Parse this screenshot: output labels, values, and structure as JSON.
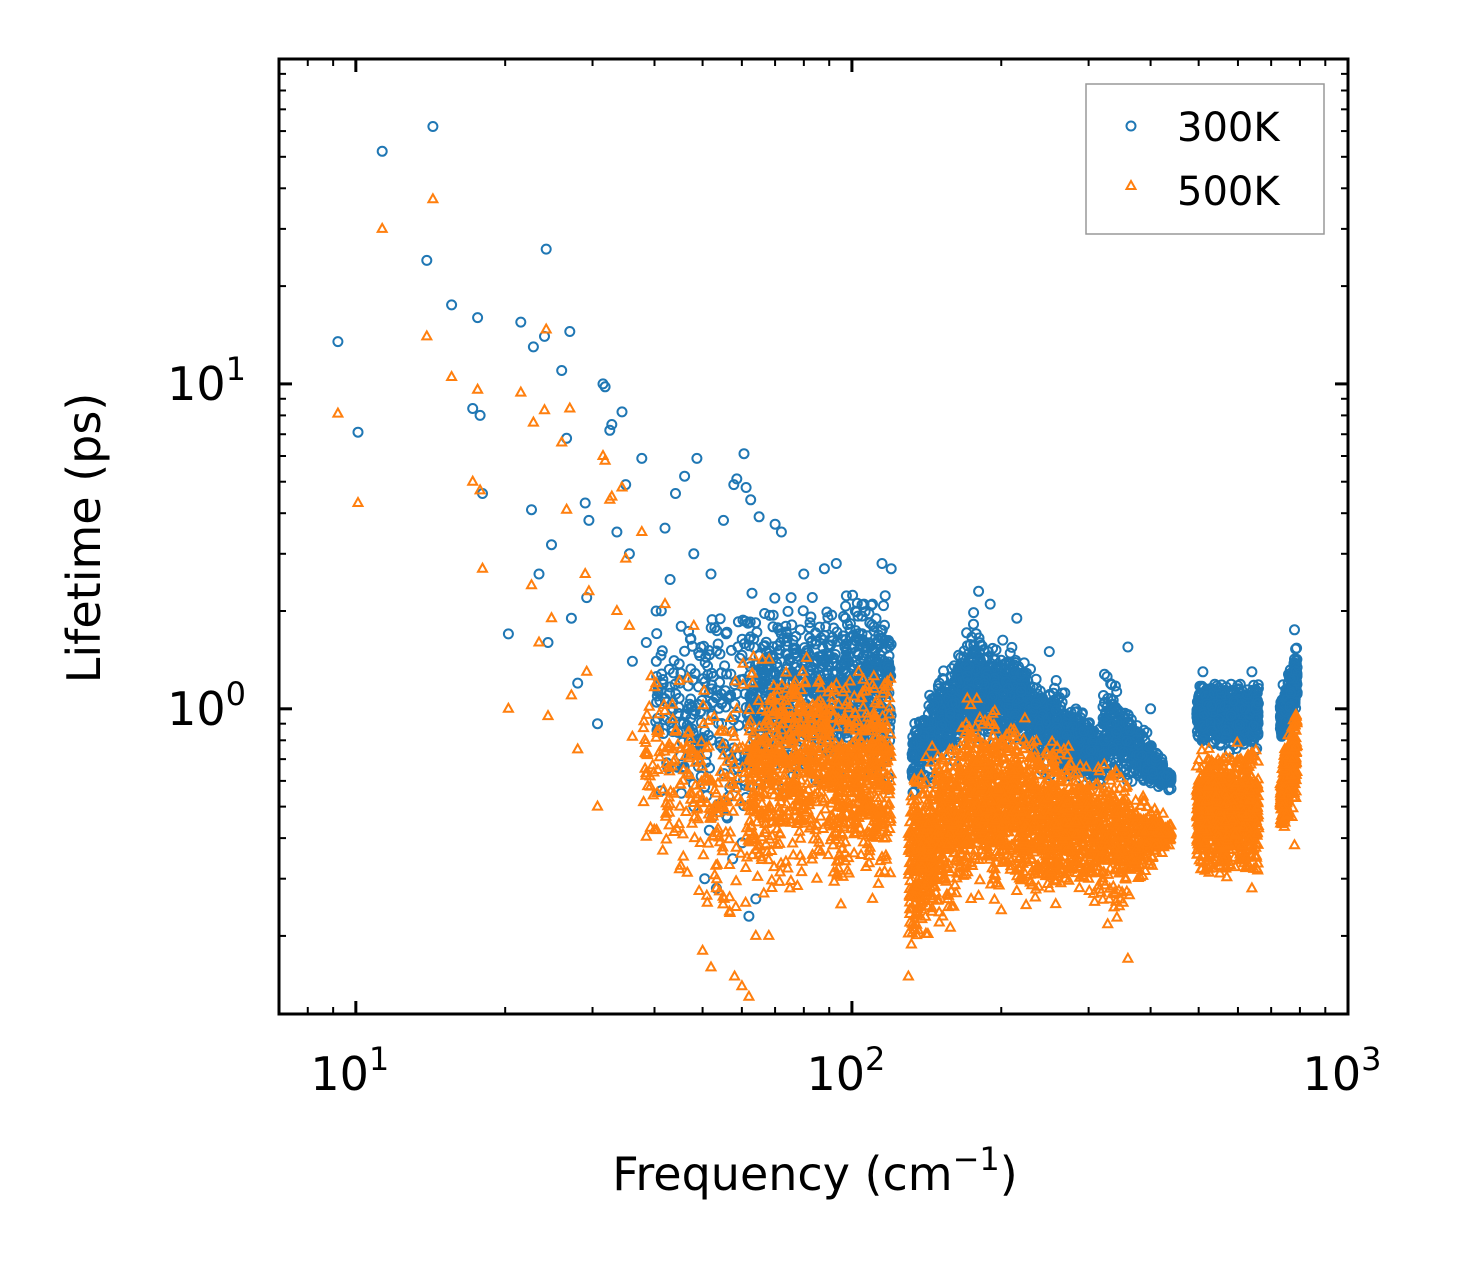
{
  "chart_data": {
    "type": "scatter",
    "title": "",
    "xlabel": "Frequency (cm",
    "xlabel_sup": "−1",
    "xlabel_end": ")",
    "ylabel": "Lifetime (ps)",
    "xscale": "log",
    "yscale": "log",
    "xlim": [
      7,
      1000
    ],
    "ylim": [
      0.115,
      100
    ],
    "legend_location": "top-right",
    "x_ticks": [
      {
        "value": 10,
        "base": "10",
        "exp": "1"
      },
      {
        "value": 100,
        "base": "10",
        "exp": "2"
      },
      {
        "value": 1000,
        "base": "10",
        "exp": "3"
      }
    ],
    "y_ticks": [
      {
        "value": 1,
        "base": "10",
        "exp": "0"
      },
      {
        "value": 10,
        "base": "10",
        "exp": "1"
      }
    ],
    "series": [
      {
        "name": "300K",
        "color": "#1f77b4",
        "marker": "circle",
        "points": [
          [
            9.2,
            13.5
          ],
          [
            10.1,
            7.1
          ],
          [
            11.3,
            52
          ],
          [
            13.9,
            24
          ],
          [
            14.3,
            62
          ],
          [
            15.6,
            17.5
          ],
          [
            17.2,
            8.4
          ],
          [
            17.6,
            16
          ],
          [
            17.8,
            8
          ],
          [
            18.0,
            4.6
          ],
          [
            20.3,
            1.7
          ],
          [
            21.5,
            15.5
          ],
          [
            22.6,
            4.1
          ],
          [
            22.8,
            13
          ],
          [
            23.4,
            2.6
          ],
          [
            24.0,
            14
          ],
          [
            24.2,
            26
          ],
          [
            24.4,
            1.6
          ],
          [
            24.8,
            3.2
          ],
          [
            26.0,
            11
          ],
          [
            26.6,
            6.8
          ],
          [
            27.0,
            14.5
          ],
          [
            27.2,
            1.9
          ],
          [
            28.0,
            1.2
          ],
          [
            29.0,
            4.3
          ],
          [
            29.2,
            2.2
          ],
          [
            29.5,
            3.8
          ],
          [
            30.7,
            0.9
          ],
          [
            31.5,
            10
          ],
          [
            31.8,
            9.8
          ],
          [
            32.5,
            7.2
          ],
          [
            32.8,
            7.5
          ],
          [
            33.6,
            3.5
          ],
          [
            34.4,
            8.2
          ],
          [
            35.0,
            4.9
          ],
          [
            35.6,
            3.0
          ],
          [
            36.1,
            1.4
          ],
          [
            37.7,
            5.9
          ],
          [
            38.5,
            1.6
          ],
          [
            40.3,
            2.0
          ],
          [
            42.0,
            3.6
          ],
          [
            43.0,
            2.5
          ],
          [
            44.1,
            4.6
          ],
          [
            45.0,
            1.2
          ],
          [
            46.0,
            5.2
          ],
          [
            48.0,
            3.0
          ],
          [
            48.7,
            5.9
          ],
          [
            49.4,
            0.75
          ],
          [
            50.5,
            0.3
          ],
          [
            52.0,
            2.6
          ],
          [
            53.3,
            0.28
          ],
          [
            55.1,
            3.8
          ],
          [
            57.8,
            4.9
          ],
          [
            58.6,
            5.1
          ],
          [
            60.6,
            6.1
          ],
          [
            61.2,
            4.8
          ],
          [
            62.0,
            0.23
          ],
          [
            62.5,
            4.4
          ],
          [
            64.0,
            0.26
          ],
          [
            65.0,
            3.9
          ],
          [
            70.0,
            3.7
          ],
          [
            72.1,
            3.5
          ],
          [
            75.4,
            2.2
          ],
          [
            80.0,
            2.6
          ],
          [
            88.0,
            2.7
          ],
          [
            93.0,
            2.8
          ],
          [
            97.0,
            1.9
          ],
          [
            102.0,
            1.5
          ],
          [
            110.0,
            2.1
          ],
          [
            115.0,
            2.8
          ],
          [
            120.0,
            2.7
          ],
          [
            135.0,
            0.85
          ],
          [
            150.0,
            1.2
          ],
          [
            180.0,
            2.3
          ],
          [
            190.0,
            2.1
          ],
          [
            215.0,
            1.9
          ],
          [
            250.0,
            1.5
          ],
          [
            300.0,
            0.9
          ],
          [
            360.0,
            1.55
          ],
          [
            400.0,
            1.0
          ],
          [
            430.0,
            0.62
          ],
          [
            510.0,
            1.3
          ],
          [
            640.0,
            1.3
          ],
          [
            780.0,
            1.75
          ]
        ]
      },
      {
        "name": "500K",
        "color": "#ff7f0e",
        "marker": "triangle",
        "points": [
          [
            9.2,
            8.1
          ],
          [
            10.1,
            4.3
          ],
          [
            11.3,
            30
          ],
          [
            13.9,
            14
          ],
          [
            14.3,
            37
          ],
          [
            15.6,
            10.5
          ],
          [
            17.2,
            5
          ],
          [
            17.6,
            9.6
          ],
          [
            17.8,
            4.7
          ],
          [
            18.0,
            2.7
          ],
          [
            20.3,
            1.0
          ],
          [
            21.5,
            9.4
          ],
          [
            22.6,
            2.4
          ],
          [
            22.8,
            7.6
          ],
          [
            23.4,
            1.6
          ],
          [
            24.0,
            8.3
          ],
          [
            24.2,
            14.7
          ],
          [
            24.4,
            0.95
          ],
          [
            24.8,
            1.9
          ],
          [
            26.0,
            6.6
          ],
          [
            26.6,
            4.1
          ],
          [
            27.0,
            8.4
          ],
          [
            27.2,
            1.1
          ],
          [
            28.0,
            0.75
          ],
          [
            29.0,
            2.6
          ],
          [
            29.2,
            1.3
          ],
          [
            29.5,
            2.3
          ],
          [
            30.7,
            0.5
          ],
          [
            31.5,
            6.0
          ],
          [
            31.8,
            5.8
          ],
          [
            32.5,
            4.4
          ],
          [
            32.8,
            4.5
          ],
          [
            33.6,
            2.0
          ],
          [
            34.4,
            4.8
          ],
          [
            35.0,
            2.9
          ],
          [
            35.6,
            1.8
          ],
          [
            36.1,
            0.82
          ],
          [
            37.7,
            3.5
          ],
          [
            40.3,
            1.2
          ],
          [
            42.0,
            2.1
          ],
          [
            45.0,
            0.5
          ],
          [
            48.0,
            1.8
          ],
          [
            50.0,
            0.18
          ],
          [
            52.0,
            0.16
          ],
          [
            55.0,
            0.25
          ],
          [
            58.0,
            0.15
          ],
          [
            60.0,
            0.14
          ],
          [
            62.0,
            0.13
          ],
          [
            64.0,
            0.2
          ],
          [
            68.0,
            0.2
          ],
          [
            75.0,
            0.28
          ],
          [
            85.0,
            0.3
          ],
          [
            95.0,
            0.25
          ],
          [
            110.0,
            0.26
          ],
          [
            130.0,
            0.15
          ],
          [
            150.0,
            0.22
          ],
          [
            200.0,
            0.24
          ],
          [
            250.0,
            0.28
          ],
          [
            300.0,
            0.3
          ],
          [
            360.0,
            0.17
          ],
          [
            430.0,
            0.38
          ],
          [
            510.0,
            0.35
          ],
          [
            640.0,
            0.28
          ],
          [
            780.0,
            0.38
          ]
        ]
      }
    ],
    "clusters": [
      {
        "series": "300K",
        "x": [
          40,
          62
        ],
        "ylow": [
          0.55,
          0.25
        ],
        "yhigh": [
          2.0,
          3.2
        ],
        "n": 230,
        "seed": 11
      },
      {
        "series": "300K",
        "x": [
          62,
          90
        ],
        "ylow": [
          0.45,
          0.55
        ],
        "yhigh": [
          2.4,
          2.6
        ],
        "n": 420,
        "seed": 12
      },
      {
        "series": "300K",
        "x": [
          90,
          120
        ],
        "ylow": [
          0.55,
          0.55
        ],
        "yhigh": [
          2.6,
          2.5
        ],
        "n": 380,
        "seed": 13
      },
      {
        "series": "300K",
        "x": [
          132,
          170
        ],
        "ylow": [
          0.5,
          0.7
        ],
        "yhigh": [
          0.95,
          1.9
        ],
        "n": 420,
        "seed": 14
      },
      {
        "series": "300K",
        "x": [
          170,
          230
        ],
        "ylow": [
          0.7,
          0.7
        ],
        "yhigh": [
          2.2,
          1.5
        ],
        "n": 520,
        "seed": 15
      },
      {
        "series": "300K",
        "x": [
          230,
          320
        ],
        "ylow": [
          0.6,
          0.55
        ],
        "yhigh": [
          1.5,
          0.9
        ],
        "n": 520,
        "seed": 16
      },
      {
        "series": "300K",
        "x": [
          320,
          440
        ],
        "ylow": [
          0.55,
          0.55
        ],
        "yhigh": [
          1.5,
          0.65
        ],
        "n": 420,
        "seed": 17
      },
      {
        "series": "300K",
        "x": [
          495,
          660
        ],
        "ylow": [
          0.75,
          0.7
        ],
        "yhigh": [
          1.25,
          1.25
        ],
        "n": 700,
        "seed": 18
      },
      {
        "series": "300K",
        "x": [
          730,
          790
        ],
        "ylow": [
          0.7,
          0.9
        ],
        "yhigh": [
          1.15,
          1.75
        ],
        "n": 280,
        "seed": 19
      },
      {
        "series": "500K",
        "x": [
          38,
          62
        ],
        "ylow": [
          0.35,
          0.13
        ],
        "yhigh": [
          1.4,
          1.8
        ],
        "n": 230,
        "seed": 21
      },
      {
        "series": "500K",
        "x": [
          62,
          90
        ],
        "ylow": [
          0.2,
          0.3
        ],
        "yhigh": [
          2.0,
          1.6
        ],
        "n": 520,
        "seed": 22
      },
      {
        "series": "500K",
        "x": [
          90,
          120
        ],
        "ylow": [
          0.23,
          0.25
        ],
        "yhigh": [
          1.6,
          1.6
        ],
        "n": 480,
        "seed": 23
      },
      {
        "series": "500K",
        "x": [
          130,
          170
        ],
        "ylow": [
          0.15,
          0.22
        ],
        "yhigh": [
          0.7,
          1.1
        ],
        "n": 560,
        "seed": 24
      },
      {
        "series": "500K",
        "x": [
          170,
          230
        ],
        "ylow": [
          0.22,
          0.23
        ],
        "yhigh": [
          1.3,
          1.0
        ],
        "n": 650,
        "seed": 25
      },
      {
        "series": "500K",
        "x": [
          230,
          320
        ],
        "ylow": [
          0.22,
          0.24
        ],
        "yhigh": [
          1.0,
          0.75
        ],
        "n": 620,
        "seed": 26
      },
      {
        "series": "500K",
        "x": [
          320,
          440
        ],
        "ylow": [
          0.17,
          0.38
        ],
        "yhigh": [
          0.9,
          0.45
        ],
        "n": 460,
        "seed": 27
      },
      {
        "series": "500K",
        "x": [
          495,
          660
        ],
        "ylow": [
          0.28,
          0.27
        ],
        "yhigh": [
          0.8,
          0.85
        ],
        "n": 780,
        "seed": 28
      },
      {
        "series": "500K",
        "x": [
          730,
          790
        ],
        "ylow": [
          0.38,
          0.5
        ],
        "yhigh": [
          0.7,
          1.2
        ],
        "n": 300,
        "seed": 29
      }
    ]
  }
}
